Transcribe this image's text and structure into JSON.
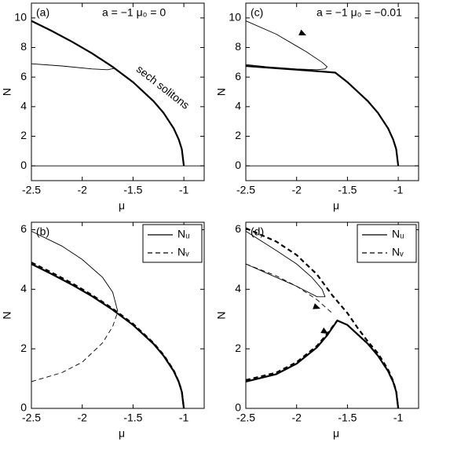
{
  "chart_data": [
    {
      "type": "line",
      "label": "(a)",
      "title": "a = −1  μ₀ = 0",
      "annotation": "sech solitons",
      "xlabel": "μ",
      "ylabel": "N",
      "xlim": [
        -2.5,
        -0.8
      ],
      "ylim": [
        -1,
        11
      ],
      "xticks": [
        -2.5,
        -2,
        -1.5,
        -1
      ],
      "yticks": [
        0,
        2,
        4,
        6,
        8,
        10
      ],
      "color": "#000000",
      "series": [
        {
          "style": "solid",
          "weight": "thick",
          "x": [
            -2.5,
            -2.3,
            -2.1,
            -1.9,
            -1.7,
            -1.5,
            -1.3,
            -1.2,
            -1.1,
            -1.05,
            -1.02,
            -1
          ],
          "values": [
            9.8,
            9.12,
            8.39,
            7.59,
            6.69,
            5.66,
            4.38,
            3.58,
            2.53,
            1.79,
            1.13,
            0
          ]
        },
        {
          "style": "solid",
          "weight": "thin",
          "x": [
            -2.5,
            -2.2,
            -1.9,
            -1.75,
            -1.68
          ],
          "values": [
            6.9,
            6.75,
            6.55,
            6.5,
            6.6
          ]
        },
        {
          "style": "solid",
          "weight": "thin",
          "x": [
            -2.5,
            -0.8
          ],
          "values": [
            0,
            0
          ]
        }
      ]
    },
    {
      "type": "line",
      "label": "(c)",
      "title": "a = −1  μ₀ = −0.01",
      "xlabel": "μ",
      "ylabel": "N",
      "xlim": [
        -2.5,
        -0.8
      ],
      "ylim": [
        -1,
        11
      ],
      "xticks": [
        -2.5,
        -2,
        -1.5,
        -1
      ],
      "yticks": [
        0,
        2,
        4,
        6,
        8,
        10
      ],
      "color": "#000000",
      "series": [
        {
          "style": "solid",
          "weight": "thin",
          "x": [
            -2.5,
            -2.2,
            -1.9,
            -1.75,
            -1.7,
            -1.72,
            -1.8,
            -2,
            -2.3,
            -2.5
          ],
          "values": [
            9.8,
            8.9,
            7.7,
            7.0,
            6.7,
            6.55,
            6.5,
            6.55,
            6.7,
            6.85
          ]
        },
        {
          "style": "solid",
          "weight": "thick",
          "x": [
            -2.5,
            -2.2,
            -1.9,
            -1.7,
            -1.62,
            -1.5,
            -1.3,
            -1.2,
            -1.1,
            -1.05,
            -1.02,
            -1
          ],
          "values": [
            6.75,
            6.6,
            6.45,
            6.35,
            6.3,
            5.66,
            4.38,
            3.58,
            2.53,
            1.79,
            1.13,
            0
          ]
        },
        {
          "style": "solid",
          "weight": "thin",
          "x": [
            -2.5,
            -0.8
          ],
          "values": [
            0,
            0
          ]
        }
      ]
    },
    {
      "type": "line",
      "label": "(b)",
      "xlabel": "μ",
      "ylabel": "N",
      "xlim": [
        -2.5,
        -0.8
      ],
      "ylim": [
        0,
        6.25
      ],
      "xticks": [
        -2.5,
        -2,
        -1.5,
        -1
      ],
      "yticks": [
        0,
        2,
        4,
        6
      ],
      "color": "#000000",
      "legend": [
        {
          "label": "Nᵤ",
          "style": "solid"
        },
        {
          "label": "Nᵥ",
          "style": "dashed"
        }
      ],
      "series": [
        {
          "style": "solid",
          "weight": "thin",
          "x": [
            -2.5,
            -2.2,
            -2,
            -1.8,
            -1.7,
            -1.65
          ],
          "values": [
            5.95,
            5.45,
            5.0,
            4.4,
            3.9,
            3.25
          ]
        },
        {
          "style": "dashed",
          "weight": "thin",
          "x": [
            -2.5,
            -2.2,
            -2,
            -1.8,
            -1.7,
            -1.65
          ],
          "values": [
            0.9,
            1.2,
            1.55,
            2.2,
            2.75,
            3.25
          ]
        },
        {
          "style": "solid",
          "weight": "thick",
          "x": [
            -2.5,
            -2.3,
            -2.1,
            -1.9,
            -1.7,
            -1.5,
            -1.3,
            -1.2,
            -1.1,
            -1.05,
            -1.02,
            -1
          ],
          "values": [
            4.85,
            4.51,
            4.15,
            3.76,
            3.31,
            2.8,
            2.17,
            1.77,
            1.25,
            0.89,
            0.56,
            0
          ]
        },
        {
          "style": "dashed",
          "weight": "thick",
          "x": [
            -2.5,
            -2.3,
            -2.1,
            -1.9,
            -1.7,
            -1.5,
            -1.3,
            -1.2,
            -1.1,
            -1.05,
            -1.02,
            -1
          ],
          "values": [
            4.9,
            4.56,
            4.2,
            3.8,
            3.35,
            2.84,
            2.2,
            1.8,
            1.28,
            0.9,
            0.57,
            0
          ]
        }
      ]
    },
    {
      "type": "line",
      "label": "(d)",
      "xlabel": "μ",
      "ylabel": "N",
      "xlim": [
        -2.5,
        -0.8
      ],
      "ylim": [
        0,
        6.25
      ],
      "xticks": [
        -2.5,
        -2,
        -1.5,
        -1
      ],
      "yticks": [
        0,
        2,
        4,
        6
      ],
      "color": "#000000",
      "legend": [
        {
          "label": "Nᵤ",
          "style": "solid"
        },
        {
          "label": "Nᵥ",
          "style": "dashed"
        }
      ],
      "series": [
        {
          "style": "solid",
          "weight": "thin",
          "x": [
            -2.5,
            -2.2,
            -2,
            -1.85,
            -1.75,
            -1.72,
            -1.8,
            -2,
            -2.2,
            -2.5
          ],
          "values": [
            5.95,
            5.3,
            4.85,
            4.4,
            4.0,
            3.75,
            3.75,
            4.1,
            4.4,
            4.85
          ]
        },
        {
          "style": "dashed",
          "weight": "thick",
          "x": [
            -2.5,
            -2.2,
            -2,
            -1.8,
            -1.65,
            -1.5,
            -1.4,
            -1.3,
            -1.2,
            -1.1,
            -1.05,
            -1.02,
            -1
          ],
          "values": [
            6.05,
            5.6,
            5.15,
            4.5,
            3.8,
            3.2,
            2.7,
            2.25,
            1.85,
            1.3,
            0.92,
            0.58,
            0
          ]
        },
        {
          "style": "dashed",
          "weight": "thin",
          "x": [
            -2.5,
            -2.2,
            -2,
            -1.8,
            -1.7,
            -1.65
          ],
          "values": [
            4.85,
            4.45,
            4.1,
            3.65,
            3.35,
            3.2
          ]
        },
        {
          "style": "solid",
          "weight": "thick",
          "x": [
            -2.5,
            -2.2,
            -2,
            -1.8,
            -1.7,
            -1.6,
            -1.5,
            -1.3,
            -1.2,
            -1.1,
            -1.05,
            -1.02,
            -1
          ],
          "values": [
            0.9,
            1.15,
            1.5,
            2.05,
            2.45,
            2.95,
            2.8,
            2.17,
            1.77,
            1.25,
            0.89,
            0.56,
            0
          ]
        },
        {
          "style": "dashed",
          "weight": "thick",
          "x": [
            -2.5,
            -2.2,
            -2,
            -1.8,
            -1.7,
            -1.6
          ],
          "values": [
            0.95,
            1.2,
            1.55,
            2.1,
            2.5,
            2.95
          ]
        }
      ]
    }
  ]
}
